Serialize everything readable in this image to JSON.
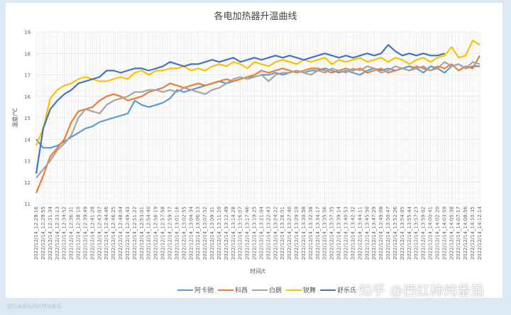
{
  "chart_data": {
    "type": "line",
    "title": "各电加热器升温曲线",
    "xlabel": "时间/t",
    "ylabel": "温度/℃",
    "ylim": [
      11,
      19
    ],
    "yticks": [
      11,
      12,
      13,
      14,
      15,
      16,
      17,
      18,
      19
    ],
    "grid": true,
    "legend_position": "bottom",
    "categories": [
      "2022/12/14_12:28:16",
      "2022/12/14_12:29:55",
      "2022/12/14_12:31:34",
      "2022/12/14_12:33:13",
      "2022/12/14_12:34:52",
      "2022/12/14_12:36:31",
      "2022/12/14_12:38:10",
      "2022/12/14_12:39:49",
      "2022/12/14_12:41:28",
      "2022/12/14_12:43:07",
      "2022/12/14_12:44:46",
      "2022/12/14_12:46:25",
      "2022/12/14_12:48:04",
      "2022/12/14_12:49:43",
      "2022/12/14_12:51:22",
      "2022/12/14_12:53:01",
      "2022/12/14_12:54:40",
      "2022/12/14_12:56:19",
      "2022/12/14_12:57:58",
      "2022/12/14_12:59:37",
      "2022/12/14_13:01:16",
      "2022/12/14_13:02:55",
      "2022/12/14_13:04:34",
      "2022/12/14_13:06:13",
      "2022/12/14_13:07:52",
      "2022/12/14_13:09:31",
      "2022/12/14_13:11:10",
      "2022/12/14_13:12:49",
      "2022/12/14_13:14:28",
      "2022/12/14_13:16:07",
      "2022/12/14_13:17:46",
      "2022/12/14_13:19:25",
      "2022/12/14_13:21:04",
      "2022/12/14_13:22:43",
      "2022/12/14_13:24:22",
      "2022/12/14_13:26:01",
      "2022/12/14_13:27:40",
      "2022/12/14_13:29:19",
      "2022/12/14_13:30:58",
      "2022/12/14_13:32:38",
      "2022/12/14_13:34:17",
      "2022/12/14_13:35:56",
      "2022/12/14_13:37:35",
      "2022/12/14_13:39:14",
      "2022/12/14_13:40:53",
      "2022/12/14_13:42:32",
      "2022/12/14_13:44:11",
      "2022/12/14_13:45:50",
      "2022/12/14_13:47:29",
      "2022/12/14_13:49:08",
      "2022/12/14_13:50:47",
      "2022/12/14_13:52:26",
      "2022/12/14_13:54:05",
      "2022/12/14_13:55:44",
      "2022/12/14_13:57:23",
      "2022/12/14_13:59:02",
      "2022/12/14_14:00:41",
      "2022/12/14_14:02:20",
      "2022/12/14_14:03:59",
      "2022/12/14_14:05:38",
      "2022/12/14_14:07:17",
      "2022/12/14_14:08:56",
      "2022/12/14_14:10:35",
      "2022/12/14_14:12:14"
    ],
    "series": [
      {
        "name": "阿卡驰",
        "color": "#5b9bd5",
        "values": [
          14.0,
          13.6,
          13.6,
          13.7,
          13.9,
          14.1,
          14.3,
          14.5,
          14.6,
          14.8,
          14.9,
          15.0,
          15.1,
          15.2,
          15.8,
          15.6,
          15.5,
          15.6,
          15.7,
          15.9,
          16.3,
          16.2,
          16.3,
          16.4,
          16.5,
          16.6,
          16.7,
          16.6,
          16.7,
          16.8,
          16.9,
          16.9,
          17.0,
          17.0,
          17.1,
          17.0,
          17.1,
          17.2,
          17.1,
          17.2,
          17.2,
          17.3,
          17.2,
          17.1,
          17.2,
          17.1,
          17.0,
          17.2,
          17.3,
          17.2,
          17.3,
          17.2,
          17.3,
          17.4,
          17.3,
          17.1,
          17.4,
          17.3,
          17.1,
          17.4,
          17.5,
          17.3,
          17.4,
          17.4
        ]
      },
      {
        "name": "科西",
        "color": "#ed7d31",
        "values": [
          11.5,
          12.3,
          13.2,
          13.6,
          14.0,
          14.8,
          15.3,
          15.4,
          15.5,
          15.8,
          16.0,
          16.1,
          16.0,
          15.8,
          15.9,
          16.0,
          16.2,
          16.3,
          16.4,
          16.6,
          16.5,
          16.4,
          16.5,
          16.6,
          16.5,
          16.6,
          16.7,
          16.8,
          16.7,
          16.8,
          16.9,
          17.0,
          17.2,
          17.1,
          17.2,
          17.3,
          17.2,
          17.1,
          17.2,
          17.3,
          17.3,
          17.2,
          17.1,
          17.2,
          17.3,
          17.2,
          17.3,
          17.1,
          17.2,
          17.3,
          17.1,
          17.2,
          17.3,
          17.2,
          17.4,
          17.3,
          17.2,
          17.4,
          17.3,
          17.5,
          17.2,
          17.4,
          17.3,
          17.9
        ]
      },
      {
        "name": "白朗",
        "color": "#a5a5a5",
        "values": [
          12.2,
          12.6,
          13.0,
          13.5,
          13.8,
          14.2,
          15.0,
          15.4,
          15.3,
          15.2,
          15.6,
          15.8,
          15.9,
          16.0,
          16.2,
          16.2,
          16.3,
          16.3,
          16.2,
          16.3,
          16.2,
          16.4,
          16.3,
          16.2,
          16.1,
          16.3,
          16.4,
          16.6,
          16.8,
          16.9,
          16.8,
          16.9,
          17.0,
          16.7,
          17.0,
          17.1,
          17.1,
          17.2,
          17.1,
          17.0,
          17.2,
          17.1,
          17.3,
          17.2,
          17.1,
          17.3,
          17.2,
          17.4,
          17.3,
          17.1,
          17.2,
          17.4,
          17.3,
          17.2,
          17.3,
          17.4,
          17.2,
          17.3,
          17.6,
          17.4,
          17.5,
          17.3,
          17.6,
          17.5
        ]
      },
      {
        "name": "锐舞",
        "color": "#ffc000",
        "values": [
          13.7,
          14.5,
          15.9,
          16.3,
          16.5,
          16.6,
          16.8,
          16.9,
          16.8,
          16.7,
          16.7,
          16.8,
          16.9,
          16.8,
          17.1,
          17.2,
          17.0,
          17.2,
          17.2,
          17.3,
          17.3,
          17.4,
          17.2,
          17.3,
          17.2,
          17.4,
          17.5,
          17.4,
          17.6,
          17.5,
          17.3,
          17.6,
          17.5,
          17.4,
          17.6,
          17.7,
          17.6,
          17.5,
          17.7,
          17.6,
          17.7,
          17.8,
          17.5,
          17.7,
          17.6,
          17.7,
          17.8,
          17.6,
          17.7,
          17.8,
          17.6,
          17.8,
          17.7,
          17.5,
          17.7,
          17.8,
          17.6,
          17.8,
          17.9,
          18.3,
          17.8,
          17.9,
          18.6,
          18.4
        ]
      },
      {
        "name": "舒乐氏",
        "color": "#4472c4",
        "values": [
          12.4,
          14.5,
          15.4,
          15.8,
          16.1,
          16.3,
          16.6,
          16.7,
          16.8,
          16.9,
          17.2,
          17.2,
          17.1,
          17.2,
          17.3,
          17.3,
          17.2,
          17.3,
          17.4,
          17.6,
          17.5,
          17.4,
          17.5,
          17.5,
          17.6,
          17.7,
          17.6,
          17.7,
          17.8,
          17.6,
          17.7,
          17.8,
          17.7,
          17.8,
          17.9,
          17.8,
          17.9,
          17.8,
          17.7,
          17.8,
          17.9,
          18.0,
          17.9,
          17.8,
          17.9,
          17.8,
          17.9,
          18.0,
          17.9,
          18.0,
          18.4,
          18.1,
          17.9,
          18.0,
          17.9,
          18.0,
          17.9,
          17.9,
          18.0,
          null,
          null,
          null,
          null,
          null
        ]
      }
    ]
  },
  "watermark": "知乎 @西红柿炖番茄",
  "source_caption": "图片来源@西红柿炖番茄"
}
